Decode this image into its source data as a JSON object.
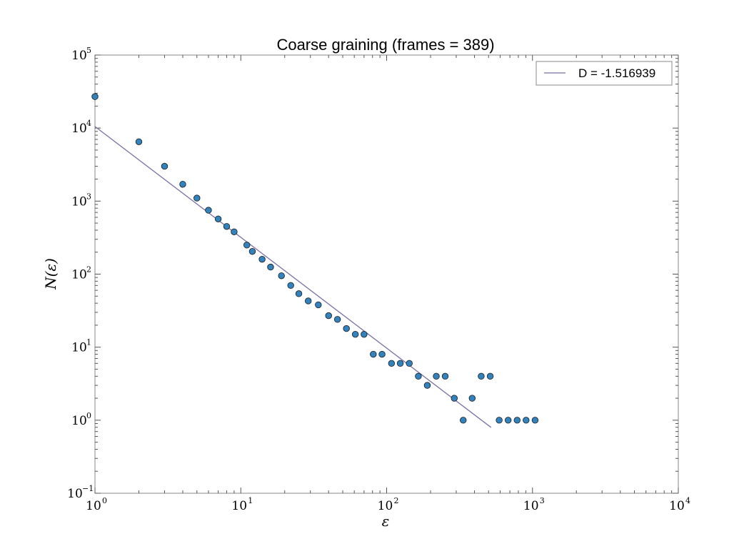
{
  "chart_data": {
    "type": "scatter",
    "title": "Coarse graining (frames = 389)",
    "xlabel": "ε",
    "ylabel": "N(ε)",
    "x_scale": "log",
    "y_scale": "log",
    "xlim": [
      1,
      10000
    ],
    "ylim": [
      0.1,
      100000
    ],
    "x_ticks": [
      {
        "base": "10",
        "exp": "0",
        "value": 1
      },
      {
        "base": "10",
        "exp": "1",
        "value": 10
      },
      {
        "base": "10",
        "exp": "2",
        "value": 100
      },
      {
        "base": "10",
        "exp": "3",
        "value": 1000
      },
      {
        "base": "10",
        "exp": "4",
        "value": 10000
      }
    ],
    "y_ticks": [
      {
        "base": "10",
        "exp": "−1",
        "value": 0.1
      },
      {
        "base": "10",
        "exp": "0",
        "value": 1
      },
      {
        "base": "10",
        "exp": "1",
        "value": 10
      },
      {
        "base": "10",
        "exp": "2",
        "value": 100
      },
      {
        "base": "10",
        "exp": "3",
        "value": 1000
      },
      {
        "base": "10",
        "exp": "4",
        "value": 10000
      },
      {
        "base": "10",
        "exp": "5",
        "value": 100000
      }
    ],
    "grid": false,
    "legend_position": "top-right",
    "points": {
      "color": "#3182bd",
      "x": [
        1,
        2,
        3,
        4,
        5,
        6,
        7,
        8,
        9,
        11,
        12,
        14,
        16,
        19,
        22,
        25,
        29,
        34,
        40,
        46,
        53,
        61,
        70,
        81,
        93,
        108,
        124,
        143,
        165,
        190,
        219,
        252,
        291,
        335,
        386,
        445,
        513,
        591,
        681,
        785,
        904,
        1042
      ],
      "y": [
        27000,
        6500,
        3000,
        1700,
        1100,
        750,
        570,
        450,
        380,
        250,
        205,
        160,
        125,
        95,
        70,
        54,
        43,
        38,
        27,
        24,
        18,
        15,
        15,
        8,
        8,
        6,
        6,
        6,
        4,
        3,
        4,
        4,
        2,
        1,
        2,
        4,
        4,
        1,
        1,
        1,
        1,
        1
      ]
    },
    "fit_line": {
      "name": "D = -1.516939",
      "color": "#7b6fa8",
      "slope": -1.516939,
      "intercept_at_1": 10500,
      "x_start": 1,
      "x_end": 520
    }
  }
}
